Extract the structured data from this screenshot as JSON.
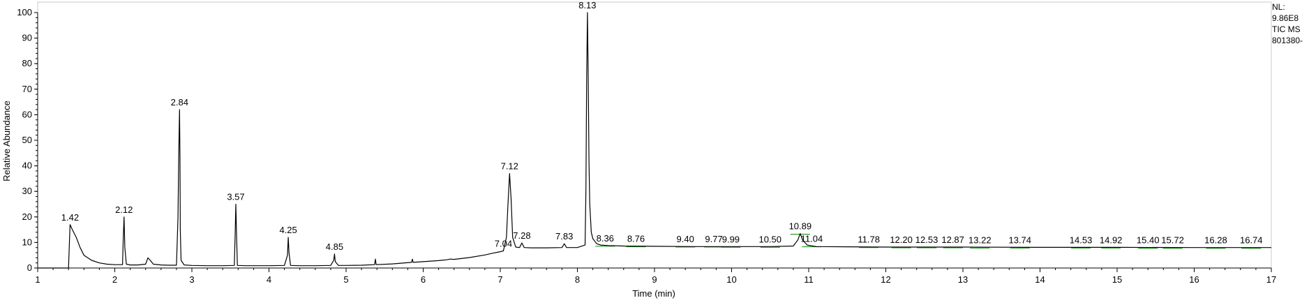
{
  "chart_data": {
    "type": "line",
    "title": "",
    "xlabel": "Time (min)",
    "ylabel": "Relative Abundance",
    "xlim": [
      1,
      17
    ],
    "ylim": [
      0,
      100
    ],
    "xticks": [
      1,
      2,
      3,
      4,
      5,
      6,
      7,
      8,
      9,
      10,
      11,
      12,
      13,
      14,
      15,
      16,
      17
    ],
    "yticks": [
      0,
      10,
      20,
      30,
      40,
      50,
      60,
      70,
      80,
      90,
      100
    ],
    "grid": false,
    "series": [
      {
        "x": [
          1.0,
          1.4,
          1.42,
          1.45,
          1.5,
          1.55,
          1.6,
          1.7,
          1.8,
          1.9,
          2.0,
          2.1,
          2.11,
          2.12,
          2.13,
          2.15,
          2.2,
          2.3,
          2.4,
          2.43,
          2.46,
          2.5,
          2.6,
          2.7,
          2.8,
          2.82,
          2.83,
          2.84,
          2.845,
          2.85,
          2.86,
          2.9,
          3.0,
          3.2,
          3.4,
          3.55,
          3.56,
          3.57,
          3.58,
          3.59,
          3.7,
          4.0,
          4.2,
          4.24,
          4.25,
          4.26,
          4.28,
          4.4,
          4.6,
          4.8,
          4.84,
          4.85,
          4.86,
          4.9,
          5.0,
          5.2,
          5.37,
          5.38,
          5.39,
          5.6,
          5.85,
          5.86,
          5.87,
          6.0,
          6.2,
          6.3,
          6.35,
          6.4,
          6.6,
          6.8,
          6.9,
          7.0,
          7.04,
          7.08,
          7.1,
          7.12,
          7.14,
          7.16,
          7.2,
          7.25,
          7.28,
          7.31,
          7.4,
          7.6,
          7.8,
          7.83,
          7.86,
          8.0,
          8.1,
          8.11,
          8.12,
          8.13,
          8.14,
          8.15,
          8.16,
          8.18,
          8.2,
          8.25,
          8.3,
          8.4,
          8.6,
          9.0,
          9.5,
          10.0,
          10.5,
          10.8,
          10.86,
          10.89,
          10.92,
          10.98,
          11.1,
          11.5,
          12.0,
          13.0,
          14.0,
          15.0,
          16.0,
          17.0
        ],
        "y": [
          0,
          0,
          17,
          15,
          12,
          8,
          5,
          3,
          2,
          1.5,
          1.3,
          1.3,
          12,
          20,
          8,
          1.5,
          1.2,
          1.2,
          1.5,
          4,
          3,
          1.5,
          1.2,
          1.1,
          1.1,
          20,
          45,
          62,
          45,
          15,
          3,
          1.2,
          1.0,
          0.9,
          0.9,
          1.0,
          12,
          25,
          12,
          1.0,
          0.9,
          0.9,
          1.0,
          5,
          12,
          6,
          1.0,
          0.9,
          0.9,
          1.0,
          3,
          5.5,
          2.5,
          1.0,
          1.0,
          1.1,
          1.3,
          3.5,
          1.3,
          1.6,
          2.2,
          3.5,
          2.2,
          2.5,
          2.9,
          3.2,
          3.5,
          3.4,
          4.1,
          5.1,
          5.8,
          6.4,
          6.7,
          12,
          25,
          37,
          27,
          12,
          8.2,
          8.0,
          9.8,
          8.0,
          7.9,
          7.9,
          8.0,
          9.5,
          8.0,
          8.0,
          9.0,
          30,
          75,
          100,
          75,
          42,
          25,
          14,
          11.5,
          9.5,
          9.0,
          8.8,
          8.6,
          8.5,
          8.4,
          8.4,
          8.4,
          8.6,
          11,
          13.5,
          11,
          9.0,
          8.4,
          8.3,
          8.2,
          8.2,
          8.1,
          8.1,
          8.0,
          8.0
        ]
      }
    ],
    "peak_labels": [
      {
        "label": "1.42",
        "x": 1.42,
        "y": 17
      },
      {
        "label": "2.12",
        "x": 2.12,
        "y": 20
      },
      {
        "label": "2.84",
        "x": 2.84,
        "y": 62
      },
      {
        "label": "3.57",
        "x": 3.57,
        "y": 25
      },
      {
        "label": "4.25",
        "x": 4.25,
        "y": 12
      },
      {
        "label": "4.85",
        "x": 4.85,
        "y": 5.5
      },
      {
        "label": "7.04",
        "x": 7.04,
        "y": 6.7
      },
      {
        "label": "7.12",
        "x": 7.12,
        "y": 37
      },
      {
        "label": "7.28",
        "x": 7.28,
        "y": 9.8
      },
      {
        "label": "7.83",
        "x": 7.83,
        "y": 9.5
      },
      {
        "label": "8.13",
        "x": 8.13,
        "y": 100
      },
      {
        "label": "8.36",
        "x": 8.36,
        "y": 8.8
      },
      {
        "label": "8.76",
        "x": 8.76,
        "y": 8.6
      },
      {
        "label": "9.40",
        "x": 9.4,
        "y": 8.5
      },
      {
        "label": "9.77",
        "x": 9.77,
        "y": 8.5
      },
      {
        "label": "9.99",
        "x": 9.99,
        "y": 8.4
      },
      {
        "label": "10.50",
        "x": 10.5,
        "y": 8.4
      },
      {
        "label": "10.89",
        "x": 10.89,
        "y": 13.5
      },
      {
        "label": "11.04",
        "x": 11.04,
        "y": 8.6
      },
      {
        "label": "11.78",
        "x": 11.78,
        "y": 8.3
      },
      {
        "label": "12.20",
        "x": 12.2,
        "y": 8.2
      },
      {
        "label": "12.53",
        "x": 12.53,
        "y": 8.2
      },
      {
        "label": "12.87",
        "x": 12.87,
        "y": 8.2
      },
      {
        "label": "13.22",
        "x": 13.22,
        "y": 8.1
      },
      {
        "label": "13.74",
        "x": 13.74,
        "y": 8.1
      },
      {
        "label": "14.53",
        "x": 14.53,
        "y": 8.1
      },
      {
        "label": "14.92",
        "x": 14.92,
        "y": 8.1
      },
      {
        "label": "15.40",
        "x": 15.4,
        "y": 8.0
      },
      {
        "label": "15.72",
        "x": 15.72,
        "y": 8.0
      },
      {
        "label": "16.28",
        "x": 16.28,
        "y": 8.0
      },
      {
        "label": "16.74",
        "x": 16.74,
        "y": 8.0
      }
    ]
  },
  "info_panel": {
    "nl_label": "NL:",
    "nl_value": "9.86E8",
    "scan_filter": "TIC  MS",
    "sample_id": "801380-"
  },
  "colors": {
    "trace": "#000000",
    "baseline_marker": "#2a9d2a",
    "axis": "#000000",
    "background": "#ffffff"
  }
}
